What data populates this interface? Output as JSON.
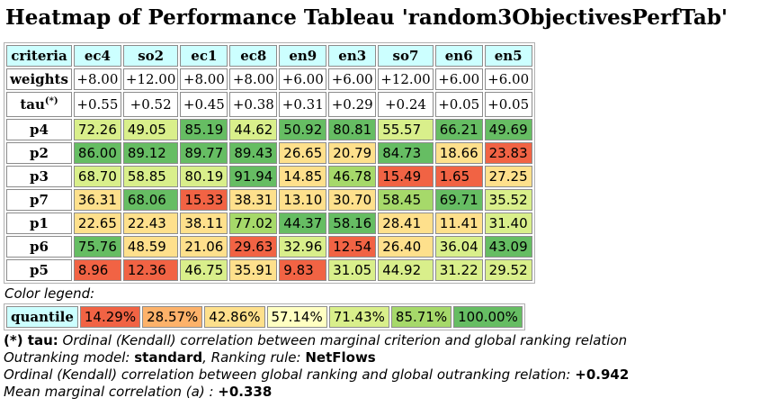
{
  "title": "Heatmap of Performance Tableau 'random3ObjectivesPerfTab'",
  "header": {
    "criteria_label": "criteria",
    "criteria": [
      "ec4",
      "so2",
      "ec1",
      "ec8",
      "en9",
      "en3",
      "so7",
      "en6",
      "en5"
    ],
    "weights_label": "weights",
    "weights": [
      "+8.00",
      "+12.00",
      "+8.00",
      "+8.00",
      "+6.00",
      "+6.00",
      "+12.00",
      "+6.00",
      "+6.00"
    ],
    "tau_label": "tau",
    "tau_marker": "(*)",
    "tau": [
      "+0.55",
      "+0.52",
      "+0.45",
      "+0.38",
      "+0.31",
      "+0.29",
      "+0.24",
      "+0.05",
      "+0.05"
    ]
  },
  "colors": {
    "q1": "#f16344",
    "q2": "#fdb26a",
    "q3": "#fee08c",
    "q4": "#ffffc2",
    "q5": "#d9ef8b",
    "q6": "#a6d96a",
    "q7": "#66bd63"
  },
  "rows": [
    {
      "name": "p4",
      "values": [
        "72.26",
        "49.05",
        "85.19",
        "44.62",
        "50.92",
        "80.81",
        "55.57",
        "66.21",
        "49.69"
      ],
      "q": [
        5,
        5,
        7,
        5,
        7,
        7,
        5,
        7,
        7
      ]
    },
    {
      "name": "p2",
      "values": [
        "86.00",
        "89.12",
        "89.77",
        "89.43",
        "26.65",
        "20.79",
        "84.73",
        "18.66",
        "23.83"
      ],
      "q": [
        7,
        7,
        7,
        7,
        3,
        3,
        7,
        3,
        1
      ]
    },
    {
      "name": "p3",
      "values": [
        "68.70",
        "58.85",
        "80.19",
        "91.94",
        "14.85",
        "46.78",
        "15.49",
        "1.65",
        "27.25"
      ],
      "q": [
        5,
        5,
        5,
        7,
        3,
        6,
        1,
        1,
        3
      ]
    },
    {
      "name": "p7",
      "values": [
        "36.31",
        "68.06",
        "15.33",
        "38.31",
        "13.10",
        "30.70",
        "58.45",
        "69.71",
        "35.52"
      ],
      "q": [
        3,
        7,
        1,
        3,
        3,
        3,
        6,
        7,
        5
      ]
    },
    {
      "name": "p1",
      "values": [
        "22.65",
        "22.43",
        "38.11",
        "77.02",
        "44.37",
        "58.16",
        "28.41",
        "11.41",
        "31.40"
      ],
      "q": [
        3,
        3,
        3,
        6,
        7,
        7,
        3,
        3,
        5
      ]
    },
    {
      "name": "p6",
      "values": [
        "75.76",
        "48.59",
        "21.06",
        "29.63",
        "32.96",
        "12.54",
        "26.40",
        "36.04",
        "43.09"
      ],
      "q": [
        7,
        3,
        3,
        1,
        5,
        1,
        3,
        5,
        7
      ]
    },
    {
      "name": "p5",
      "values": [
        "8.96",
        "12.36",
        "46.75",
        "35.91",
        "9.83",
        "31.05",
        "44.92",
        "31.22",
        "29.52"
      ],
      "q": [
        1,
        1,
        5,
        3,
        1,
        5,
        5,
        5,
        5
      ]
    }
  ],
  "legend": {
    "title": "Color legend:",
    "label": "quantile",
    "items": [
      {
        "text": "14.29%",
        "q": 1
      },
      {
        "text": "28.57%",
        "q": 2
      },
      {
        "text": "42.86%",
        "q": 3
      },
      {
        "text": "57.14%",
        "q": 4
      },
      {
        "text": "71.43%",
        "q": 5
      },
      {
        "text": "85.71%",
        "q": 6
      },
      {
        "text": "100.00%",
        "q": 7
      }
    ]
  },
  "notes": {
    "tau_note_key": "(*) tau:",
    "tau_note_text": " Ordinal (Kendall) correlation between marginal criterion and global ranking relation",
    "model_label": "Outranking model: ",
    "model_value": "standard",
    "rule_label": ", Ranking rule: ",
    "rule_value": "NetFlows",
    "ordinal_label": "Ordinal (Kendall) correlation between global ranking and global outranking relation: ",
    "ordinal_value": "+0.942",
    "mean_label": "Mean marginal correlation (a) : ",
    "mean_value": "+0.338"
  }
}
